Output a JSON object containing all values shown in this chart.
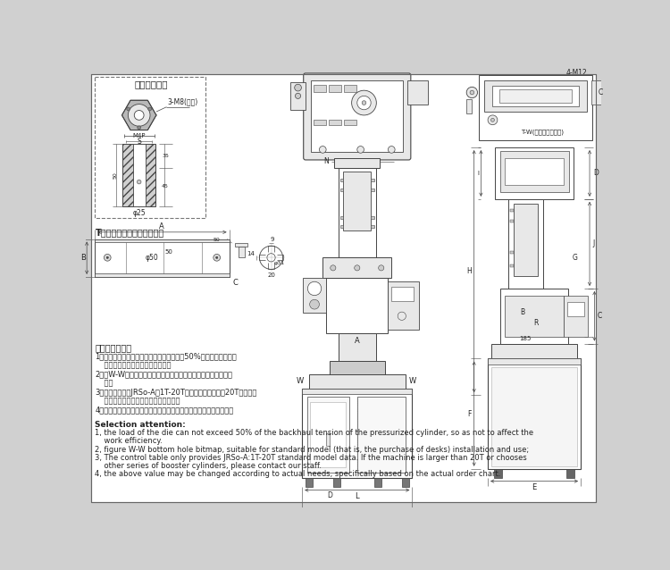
{
  "bg_color": "#d0d0d0",
  "white": "#ffffff",
  "light_gray": "#e8e8e8",
  "med_gray": "#cccccc",
  "dark_gray": "#999999",
  "line_color": "#444444",
  "text_color": "#222222",
  "dim_color": "#333333",
  "fig_width": 7.5,
  "fig_height": 6.38,
  "dpi": 100,
  "upper_die_title": "上模模头详图",
  "tslot_title": "T型槽底板（工作台面详图）",
  "side_title": "T-W(底部安装孔详图)",
  "zh_line1": "选型注意事项：",
  "zh_line2": "1、模具上模负载不能超过增压缸回程拉力的50%，以免影响工作效",
  "zh_line3": "    率；此点要求适用我司所有机台。",
  "zh_line4": "2、图W-W底部孔位图，适用于标配机型（即未选购桌子）安装使",
  "zh_line5": "    用；",
  "zh_line6": "3、对照表仅提供JRSo-A：1T-20T标准机型数据，大于20T或选其他",
  "zh_line7": "    系列增压缸的机台请与我司人员联系；",
  "zh_line8": "4、以上数值可能会根据实际需要进行变动，具体以实际订单图为准。",
  "en_title": "Selection attention:",
  "en_line1": "1, the load of the die can not exceed 50% of the backhaul tension of the pressurized cylinder, so as not to affect the",
  "en_line1b": "    work efficiency.",
  "en_line2": "2, figure W-W bottom hole bitmap, suitable for standard model (that is, the purchase of desks) installation and use;",
  "en_line3": "3, The control table only provides JRSo-A:1T-20T standard model data. If the machine is larger than 20T or chooses",
  "en_line3b": "    other series of booster cylinders, please contact our staff.",
  "en_line4": "4, the above value may be changed according to actual needs, specifically based on the actual order chart."
}
